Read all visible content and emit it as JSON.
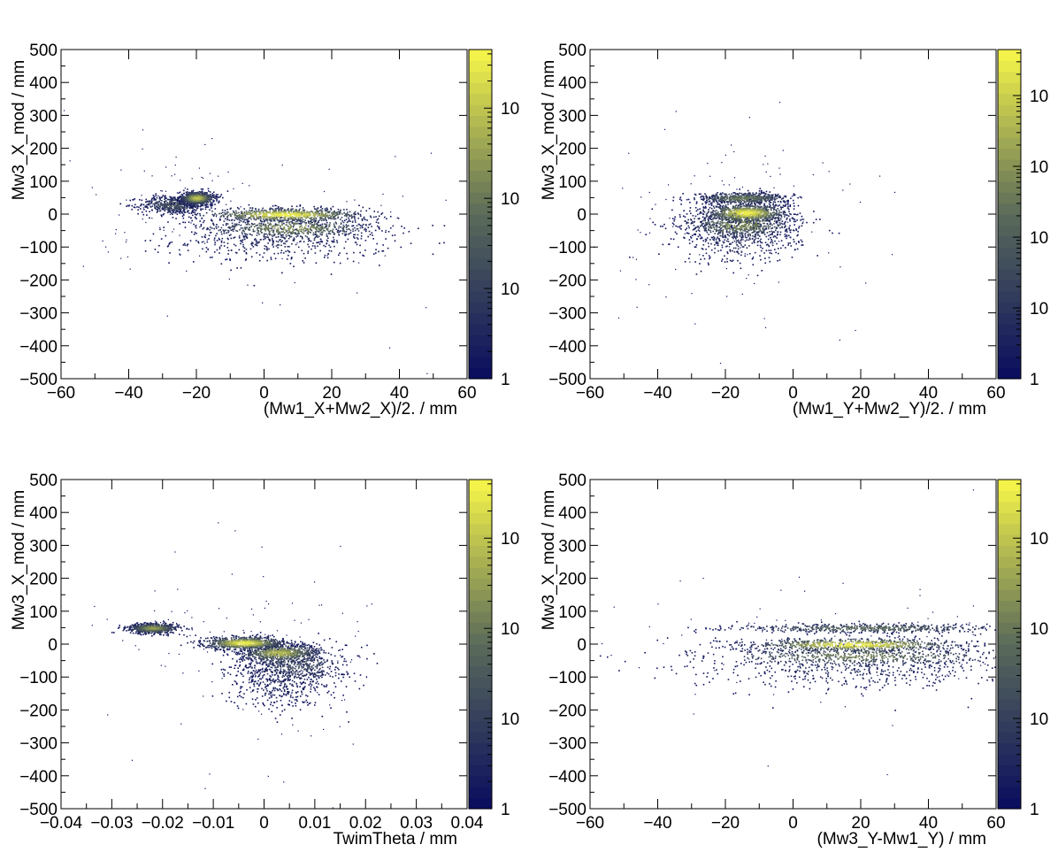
{
  "colors": {
    "background": "#ffffff",
    "frame": "#000000",
    "palette_low": "#0b0f5e",
    "palette_mid": "#5a6a5a",
    "palette_high": "#f2f24a"
  },
  "chart_data": [
    {
      "type": "heatmap",
      "xlabel": "(Mw1_X+Mw2_X)/2. / mm",
      "ylabel": "Mw3_X_mod / mm",
      "xlim": [
        -60,
        60
      ],
      "ylim": [
        -500,
        500
      ],
      "xticks": [
        -60,
        -40,
        -20,
        0,
        20,
        40,
        60
      ],
      "yticks": [
        -500,
        -400,
        -300,
        -200,
        -100,
        0,
        100,
        200,
        300,
        400,
        500
      ],
      "colorbar": {
        "scale": "log",
        "tick_labels": [
          "1",
          "10",
          "10",
          "10"
        ]
      },
      "clusters": [
        {
          "x": 6,
          "y": 0,
          "sx": 12,
          "sy": 10,
          "level": 1.0
        },
        {
          "x": 8,
          "y": -40,
          "sx": 13,
          "sy": 18,
          "level": 0.65
        },
        {
          "x": -20,
          "y": 50,
          "sx": 2.5,
          "sy": 10,
          "level": 0.85
        },
        {
          "x": -27,
          "y": 30,
          "sx": 5,
          "sy": 14,
          "level": 0.35
        },
        {
          "x": 5,
          "y": -80,
          "sx": 16,
          "sy": 35,
          "level": 0.15
        }
      ]
    },
    {
      "type": "heatmap",
      "xlabel": "(Mw1_Y+Mw2_Y)/2. / mm",
      "ylabel": "Mw3_X_mod / mm",
      "xlim": [
        -60,
        60
      ],
      "ylim": [
        -500,
        500
      ],
      "xticks": [
        -60,
        -40,
        -20,
        0,
        20,
        40,
        60
      ],
      "yticks": [
        -500,
        -400,
        -300,
        -200,
        -100,
        0,
        100,
        200,
        300,
        400,
        500
      ],
      "colorbar": {
        "scale": "log",
        "tick_labels": [
          "1",
          "10",
          "10",
          "10",
          "10"
        ]
      },
      "clusters": [
        {
          "x": -14,
          "y": 5,
          "sx": 6,
          "sy": 14,
          "level": 1.0
        },
        {
          "x": -15,
          "y": 50,
          "sx": 7,
          "sy": 9,
          "level": 0.55
        },
        {
          "x": -16,
          "y": -30,
          "sx": 8,
          "sy": 22,
          "level": 0.65
        },
        {
          "x": -16,
          "y": -70,
          "sx": 9,
          "sy": 40,
          "level": 0.18
        }
      ]
    },
    {
      "type": "heatmap",
      "xlabel": "TwimTheta / mm",
      "ylabel": "Mw3_X_mod / mm",
      "xlim": [
        -0.04,
        0.04
      ],
      "ylim": [
        -500,
        500
      ],
      "xticks": [
        -0.04,
        -0.03,
        -0.02,
        -0.01,
        0,
        0.01,
        0.02,
        0.03,
        0.04
      ],
      "yticks": [
        -500,
        -400,
        -300,
        -200,
        -100,
        0,
        100,
        200,
        300,
        400,
        500
      ],
      "colorbar": {
        "scale": "log",
        "tick_labels": [
          "1",
          "10",
          "10",
          "10"
        ]
      },
      "clusters": [
        {
          "x": -0.004,
          "y": 5,
          "sx": 0.004,
          "sy": 10,
          "level": 1.0
        },
        {
          "x": 0.003,
          "y": -25,
          "sx": 0.004,
          "sy": 14,
          "level": 0.8
        },
        {
          "x": -0.022,
          "y": 50,
          "sx": 0.0025,
          "sy": 8,
          "level": 0.7
        },
        {
          "x": 0.006,
          "y": -60,
          "sx": 0.005,
          "sy": 30,
          "level": 0.35
        },
        {
          "x": 0.003,
          "y": -120,
          "sx": 0.005,
          "sy": 40,
          "level": 0.12
        }
      ]
    },
    {
      "type": "heatmap",
      "xlabel": "(Mw3_Y-Mw1_Y) / mm",
      "ylabel": "Mw3_X_mod / mm",
      "xlim": [
        -60,
        60
      ],
      "ylim": [
        -500,
        500
      ],
      "xticks": [
        -60,
        -40,
        -20,
        0,
        20,
        40,
        60
      ],
      "yticks": [
        -500,
        -400,
        -300,
        -200,
        -100,
        0,
        100,
        200,
        300,
        400,
        500
      ],
      "colorbar": {
        "scale": "log",
        "tick_labels": [
          "1",
          "10",
          "10",
          "10"
        ]
      },
      "clusters": [
        {
          "x": 18,
          "y": 0,
          "sx": 16,
          "sy": 10,
          "level": 1.0
        },
        {
          "x": 22,
          "y": 50,
          "sx": 20,
          "sy": 7,
          "level": 0.5
        },
        {
          "x": 20,
          "y": -35,
          "sx": 22,
          "sy": 15,
          "level": 0.6
        },
        {
          "x": 20,
          "y": -80,
          "sx": 24,
          "sy": 30,
          "level": 0.15
        }
      ]
    }
  ]
}
